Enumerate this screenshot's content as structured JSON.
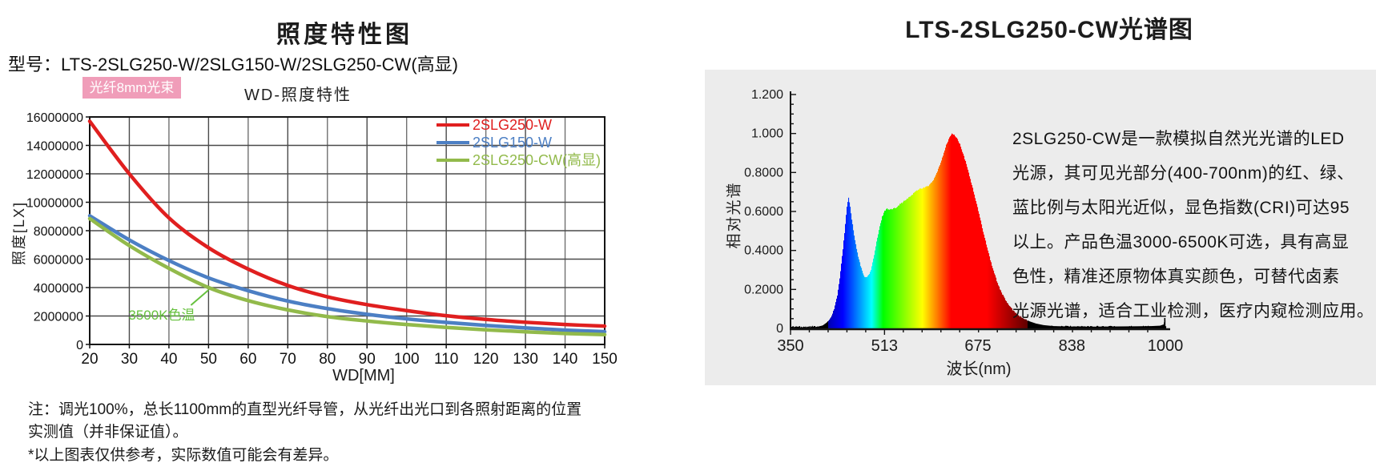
{
  "left": {
    "title": "照度特性图",
    "model_line": "型号：LTS-2SLG250-W/2SLG150-W/2SLG250-CW(高显)",
    "badge": "光纤8mm光束",
    "chart_title": "WD-照度特性",
    "y_axis_title": "照度[LX]",
    "x_axis_title": "WD[MM]",
    "annotation": "3500K色温",
    "note_line1": "注：调光100%，总长1100mm的直型光纤导管，从光纤出光口到各照射距离的位置",
    "note_line2": "实测值（并非保证值）。",
    "note_line3": "*以上图表仅供参考，实际数值可能会有差异。"
  },
  "right": {
    "title": "LTS-2SLG250-CW光谱图",
    "y_axis_title": "相对光谱",
    "x_axis_title": "波长(nm)",
    "paragraph_lines": [
      "2SLG250-CW是一款模拟自然光光谱的LED",
      "光源，其可见光部分(400-700nm)的红、绿、",
      "蓝比例与太阳光近似，显色指数(CRI)可达95",
      "以上。产品色温3000-6500K可选，具有高显",
      "色性，精准还原物体真实颜色，可替代卤素",
      "光源光谱，适合工业检测，医疗内窥检测应用。"
    ]
  },
  "colors": {
    "accent_pink": "#F09DB9",
    "series_red": "#E01F1F",
    "series_blue": "#4C7FC4",
    "series_green": "#92BA4B",
    "annotation_green": "#66C13E",
    "panel_gray": "#ECECEC",
    "grid_dark": "#4A4A4A",
    "grid_light": "#707070",
    "axis_black": "#141414"
  },
  "chart_data": [
    {
      "type": "line",
      "title": "WD-照度特性",
      "xlabel": "WD[MM]",
      "ylabel": "照度[LX]",
      "x": [
        20,
        30,
        40,
        50,
        60,
        70,
        80,
        90,
        100,
        110,
        120,
        130,
        140,
        150
      ],
      "xlim": [
        20,
        150
      ],
      "ylim": [
        0,
        16000000
      ],
      "y_ticks": [
        0,
        2000000,
        4000000,
        6000000,
        8000000,
        10000000,
        12000000,
        14000000,
        16000000
      ],
      "grid": true,
      "legend_position": "top-right",
      "series": [
        {
          "name": "2SLG250-W",
          "color": "#E01F1F",
          "values": [
            15700000,
            12000000,
            8900000,
            6800000,
            5300000,
            4150000,
            3350000,
            2800000,
            2380000,
            2020000,
            1760000,
            1560000,
            1400000,
            1290000
          ]
        },
        {
          "name": "2SLG150-W",
          "color": "#4C7FC4",
          "values": [
            9050000,
            7350000,
            5900000,
            4680000,
            3780000,
            3050000,
            2520000,
            2120000,
            1800000,
            1550000,
            1340000,
            1160000,
            1010000,
            900000
          ]
        },
        {
          "name": "2SLG250-CW(高显)",
          "color": "#92BA4B",
          "values": [
            8850000,
            6950000,
            5350000,
            4000000,
            3080000,
            2430000,
            1960000,
            1650000,
            1400000,
            1200000,
            1030000,
            890000,
            770000,
            690000
          ]
        }
      ],
      "annotation": {
        "text": "3500K色温",
        "at_x": 50,
        "at_y": 4000000
      }
    },
    {
      "type": "area",
      "title": "LTS-2SLG250-CW光谱图",
      "xlabel": "波长(nm)",
      "ylabel": "相对光谱",
      "xlim": [
        350,
        1000
      ],
      "ylim": [
        0,
        1.2
      ],
      "x_ticks": [
        350,
        513,
        675,
        838,
        1000
      ],
      "y_ticks": [
        0,
        0.2,
        0.4,
        0.6,
        0.8,
        1.0,
        1.2
      ],
      "y_tick_labels": [
        "0",
        "0.2000",
        "0.4000",
        "0.6000",
        "0.8000",
        "1.000",
        "1.200"
      ],
      "fill": "wavelength-rainbow",
      "points": [
        [
          350,
          0.004
        ],
        [
          370,
          0.004
        ],
        [
          385,
          0.005
        ],
        [
          395,
          0.008
        ],
        [
          405,
          0.015
        ],
        [
          412,
          0.03
        ],
        [
          418,
          0.05
        ],
        [
          424,
          0.09
        ],
        [
          430,
          0.16
        ],
        [
          435,
          0.26
        ],
        [
          440,
          0.4
        ],
        [
          444,
          0.52
        ],
        [
          447,
          0.62
        ],
        [
          450,
          0.67
        ],
        [
          452,
          0.64
        ],
        [
          456,
          0.55
        ],
        [
          460,
          0.47
        ],
        [
          465,
          0.39
        ],
        [
          470,
          0.33
        ],
        [
          474,
          0.29
        ],
        [
          478,
          0.265
        ],
        [
          481,
          0.26
        ],
        [
          485,
          0.275
        ],
        [
          489,
          0.3
        ],
        [
          494,
          0.37
        ],
        [
          499,
          0.45
        ],
        [
          504,
          0.52
        ],
        [
          508,
          0.57
        ],
        [
          512,
          0.6
        ],
        [
          516,
          0.615
        ],
        [
          521,
          0.61
        ],
        [
          526,
          0.612
        ],
        [
          532,
          0.62
        ],
        [
          538,
          0.635
        ],
        [
          545,
          0.65
        ],
        [
          552,
          0.665
        ],
        [
          558,
          0.68
        ],
        [
          565,
          0.7
        ],
        [
          572,
          0.715
        ],
        [
          578,
          0.72
        ],
        [
          584,
          0.725
        ],
        [
          590,
          0.735
        ],
        [
          596,
          0.755
        ],
        [
          602,
          0.79
        ],
        [
          608,
          0.835
        ],
        [
          614,
          0.89
        ],
        [
          620,
          0.945
        ],
        [
          625,
          0.98
        ],
        [
          630,
          1.0
        ],
        [
          634,
          0.99
        ],
        [
          638,
          0.975
        ],
        [
          643,
          0.945
        ],
        [
          648,
          0.9
        ],
        [
          654,
          0.845
        ],
        [
          660,
          0.78
        ],
        [
          666,
          0.71
        ],
        [
          672,
          0.64
        ],
        [
          678,
          0.565
        ],
        [
          684,
          0.49
        ],
        [
          690,
          0.42
        ],
        [
          696,
          0.35
        ],
        [
          702,
          0.29
        ],
        [
          708,
          0.235
        ],
        [
          715,
          0.185
        ],
        [
          722,
          0.147
        ],
        [
          730,
          0.11
        ],
        [
          738,
          0.085
        ],
        [
          746,
          0.065
        ],
        [
          755,
          0.048
        ],
        [
          765,
          0.035
        ],
        [
          775,
          0.025
        ],
        [
          788,
          0.017
        ],
        [
          805,
          0.012
        ],
        [
          830,
          0.01
        ],
        [
          870,
          0.009
        ],
        [
          910,
          0.01
        ],
        [
          950,
          0.011
        ],
        [
          975,
          0.012
        ],
        [
          990,
          0.014
        ],
        [
          996,
          0.02
        ],
        [
          999,
          0.045
        ],
        [
          1000,
          0.01
        ]
      ]
    }
  ]
}
